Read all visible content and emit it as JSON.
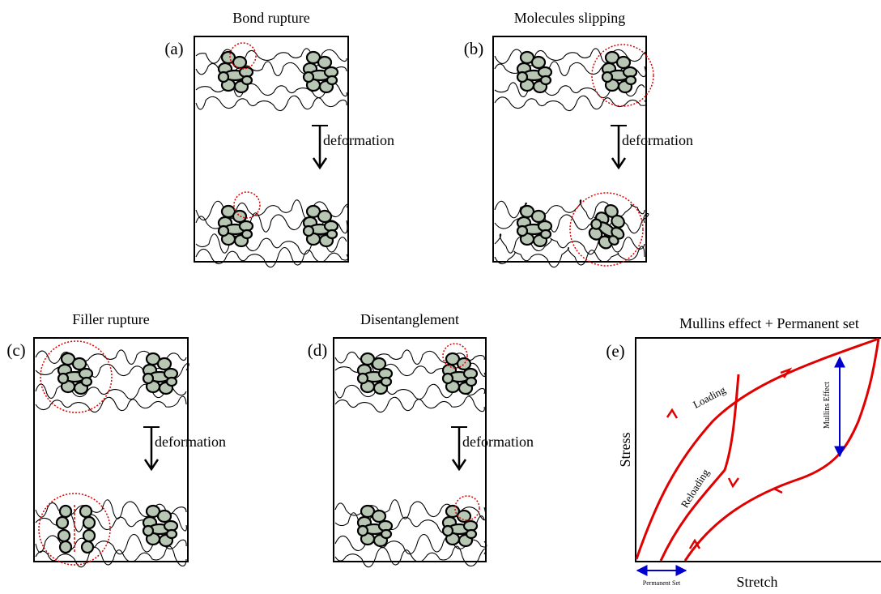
{
  "panels": [
    {
      "label": "(a)",
      "title": "Bond rupture",
      "arrow_label": "deformation"
    },
    {
      "label": "(b)",
      "title": "Molecules slipping",
      "arrow_label": "deformation"
    },
    {
      "label": "(c)",
      "title": "Filler rupture",
      "arrow_label": "deformation"
    },
    {
      "label": "(d)",
      "title": "Disentanglement",
      "arrow_label": "deformation"
    }
  ],
  "graph": {
    "label": "(e)",
    "title": "Mullins effect + Permanent set",
    "y_label": "Stress",
    "x_label": "Stretch",
    "curve_labels": [
      "Loading",
      "Reloading"
    ],
    "annotations": [
      "Mullins Effect",
      "Permanent Set"
    ]
  }
}
